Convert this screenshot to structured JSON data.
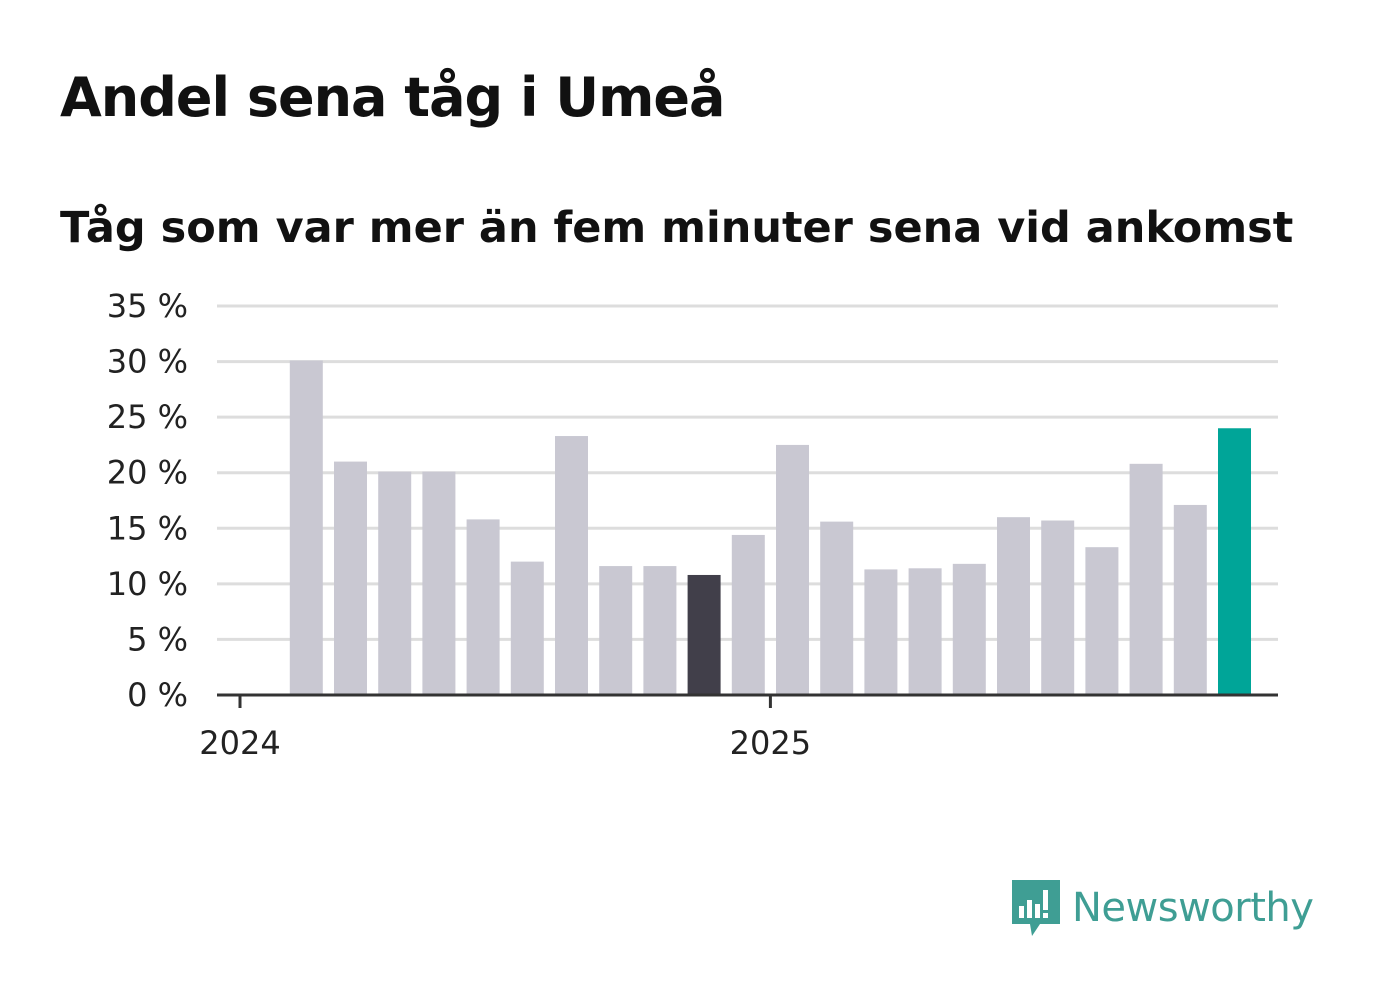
{
  "chart_data": {
    "type": "bar",
    "title": "Andel sena tåg i Umeå",
    "subtitle": "Tåg som var mer än fem minuter sena vid ankomst",
    "x": [
      "2024-02",
      "2024-03",
      "2024-04",
      "2024-05",
      "2024-06",
      "2024-07",
      "2024-08",
      "2024-09",
      "2024-10",
      "2024-11",
      "2024-12",
      "2025-01",
      "2025-02",
      "2025-03",
      "2025-04",
      "2025-05",
      "2025-06",
      "2025-07",
      "2025-08",
      "2025-09",
      "2025-10",
      "2025-11"
    ],
    "values": [
      30.1,
      21.0,
      20.1,
      20.1,
      15.8,
      12.0,
      23.3,
      11.6,
      11.6,
      10.8,
      14.4,
      22.5,
      15.6,
      11.3,
      11.4,
      11.8,
      16.0,
      15.7,
      13.3,
      20.8,
      17.1,
      24.0
    ],
    "highlight": {
      "2024-11": "#413f4a",
      "2025-11": "#00a598"
    },
    "bar_color": "#c9c8d2",
    "ylim": [
      0,
      35
    ],
    "yticks": [
      0,
      5,
      10,
      15,
      20,
      25,
      30,
      35
    ],
    "ytick_labels": [
      "0 %",
      "5 %",
      "10 %",
      "15 %",
      "20 %",
      "25 %",
      "30 %",
      "35 %"
    ],
    "xtick_labels": [
      "2024",
      "2025"
    ],
    "xtick_positions": [
      "2024-01-01",
      "2025-01-01"
    ],
    "grid": true,
    "legend": false
  },
  "brand": {
    "name": "Newsworthy",
    "color": "#3f9e94"
  }
}
